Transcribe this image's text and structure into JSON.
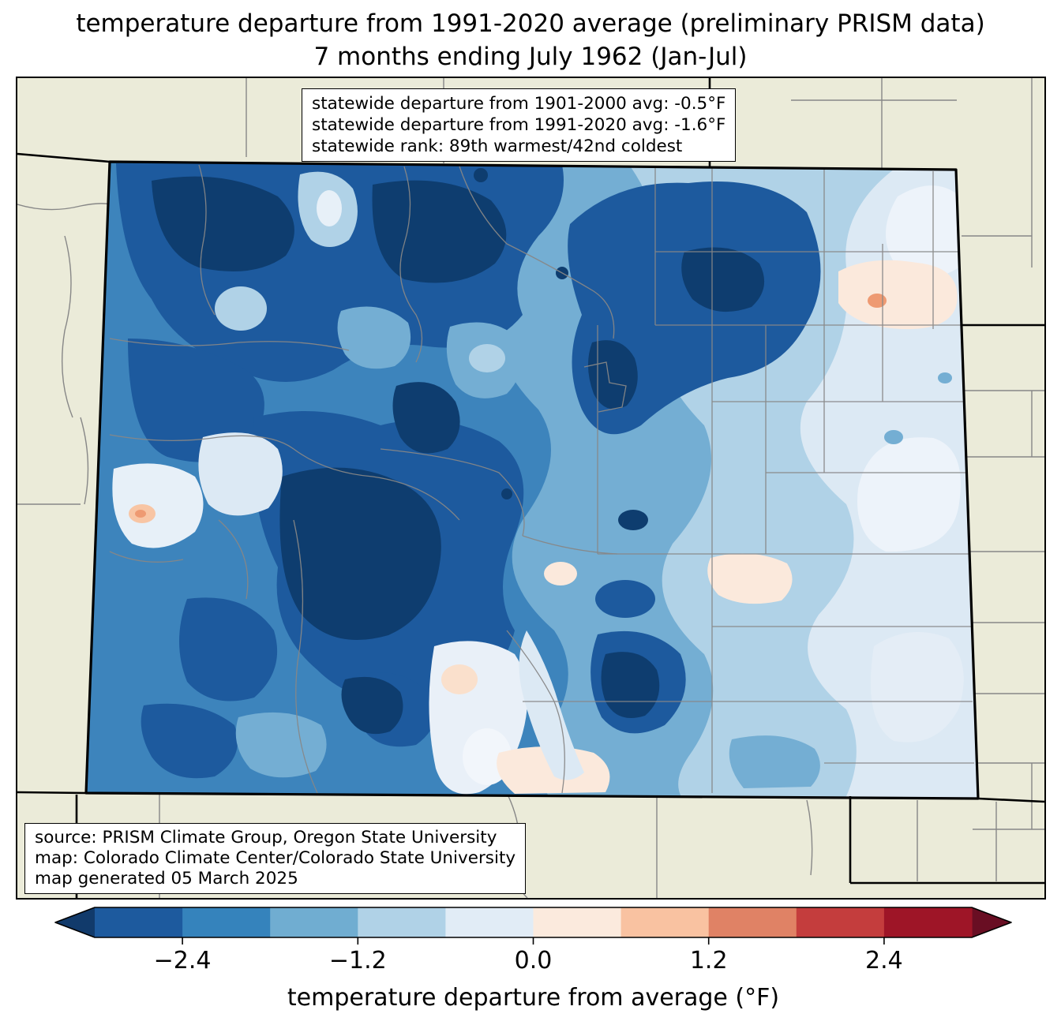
{
  "title": {
    "line1": "temperature departure from 1991-2020 average (preliminary PRISM data)",
    "line2": "7 months ending July 1962 (Jan-Jul)"
  },
  "stats_box": {
    "line1": "statewide departure from 1901-2000 avg: -0.5°F",
    "line2": "statewide departure from 1991-2020 avg: -1.6°F",
    "line3": "statewide rank: 89th warmest/42nd coldest"
  },
  "source_box": {
    "line1": "source: PRISM Climate Group, Oregon State University",
    "line2": "map: Colorado Climate Center/Colorado State University",
    "line3": "map generated 05 March 2025"
  },
  "colorbar": {
    "label": "temperature departure from average (°F)",
    "range_min": -3.0,
    "range_max": 3.0,
    "segment_step": 0.6,
    "ticks": [
      {
        "value": -2.4,
        "label": "−2.4"
      },
      {
        "value": -1.2,
        "label": "−1.2"
      },
      {
        "value": 0.0,
        "label": "0.0"
      },
      {
        "value": 1.2,
        "label": "1.2"
      },
      {
        "value": 2.4,
        "label": "2.4"
      }
    ],
    "segment_colors": [
      "#1D5A9E",
      "#3583BC",
      "#70ADD1",
      "#B0D2E7",
      "#E1ECF6",
      "#FBEADD",
      "#F9C2A1",
      "#E08265",
      "#C43D3D",
      "#9E1527"
    ],
    "under_arrow_color": "#113A6B",
    "over_arrow_color": "#690E23"
  },
  "map": {
    "region": "Colorado",
    "outside_fill_color": "#EBEBD9",
    "county_line_color": "#878787",
    "state_border_color": "#000000",
    "coldest_fill": "#0E3D6F",
    "warm_spot_fill": "#EE9A72"
  }
}
